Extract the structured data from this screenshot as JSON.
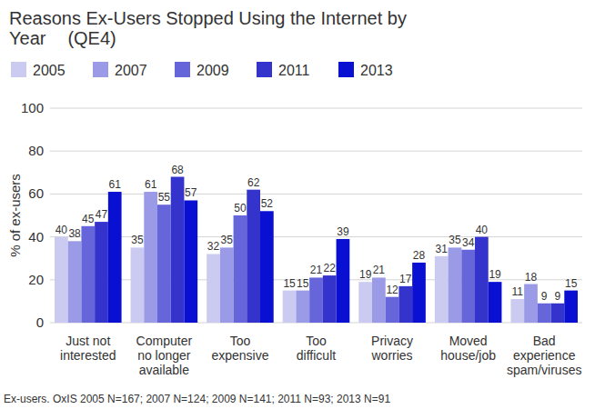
{
  "chart_data": {
    "type": "bar",
    "title": "Reasons Ex-Users Stopped Using the Internet by Year",
    "subtitle": "(QE4)",
    "y_label": "% of ex-users",
    "annotations": [
      "Ex-users. OxIS 2005 N=167; 2007 N=124; 2009 N=141; 2011 N=93; 2013 N=91"
    ],
    "categories": [
      "Just not interested",
      "Computer no longer available",
      "Too expensive",
      "Too difficult",
      "Privacy worries",
      "Moved house/job",
      "Bad experience spam/viruses"
    ],
    "series": [
      {
        "name": "2005",
        "color": "#cbcbf2",
        "values": [
          40,
          35,
          32,
          15,
          19,
          31,
          11
        ]
      },
      {
        "name": "2007",
        "color": "#9a9ae6",
        "values": [
          38,
          61,
          35,
          15,
          21,
          35,
          18
        ]
      },
      {
        "name": "2009",
        "color": "#6666da",
        "values": [
          45,
          55,
          50,
          21,
          12,
          34,
          9
        ]
      },
      {
        "name": "2011",
        "color": "#3434cc",
        "values": [
          47,
          68,
          62,
          22,
          17,
          40,
          9
        ]
      },
      {
        "name": "2013",
        "color": "#0a10d2",
        "values": [
          61,
          57,
          52,
          39,
          28,
          19,
          15
        ]
      }
    ],
    "ylim": [
      0,
      100
    ],
    "yticks": [
      0,
      20,
      40,
      60,
      80,
      100
    ],
    "grid": true,
    "legend": "top",
    "data_labels": true
  }
}
